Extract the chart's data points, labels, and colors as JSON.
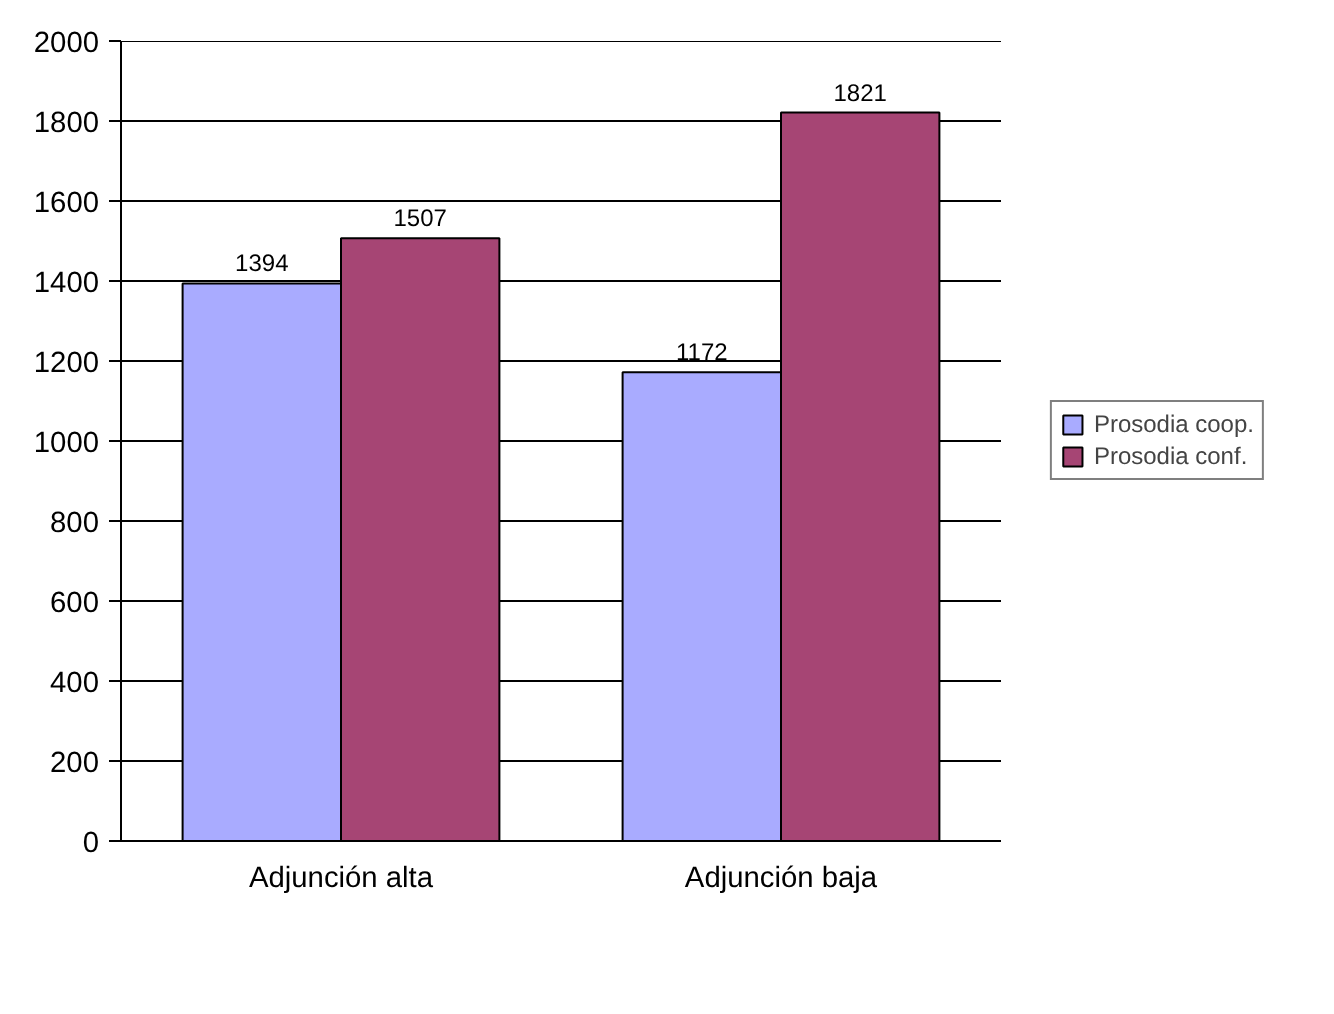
{
  "chart_data": {
    "type": "bar",
    "categories": [
      "Adjunción alta",
      "Adjunción baja"
    ],
    "series": [
      {
        "name": "Prosodia coop.",
        "color": "#a9abff",
        "values": [
          1394,
          1172
        ]
      },
      {
        "name": "Prosodia conf.",
        "color": "#a64574",
        "values": [
          1507,
          1821
        ]
      }
    ],
    "ylim": [
      0,
      2000
    ],
    "yticks": [
      0,
      200,
      400,
      600,
      800,
      1000,
      1200,
      1400,
      1600,
      1800,
      2000
    ],
    "grid": "y",
    "legend": "right",
    "data_labels": true
  }
}
